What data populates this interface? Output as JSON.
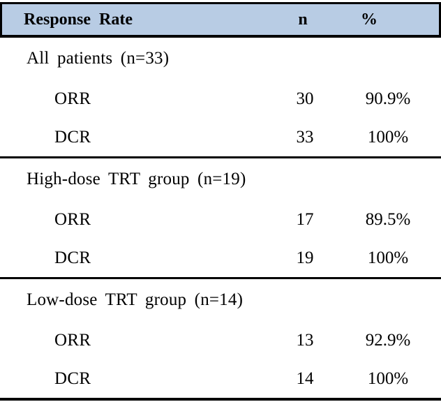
{
  "colors": {
    "header_bg": "#b8cce4",
    "border": "#000000",
    "text": "#000000"
  },
  "table": {
    "header": {
      "label": "Response Rate",
      "n": "n",
      "pct": "%"
    },
    "sections": [
      {
        "title": "All patients (n=33)",
        "rows": [
          {
            "label": "ORR",
            "n": "30",
            "pct": "90.9%"
          },
          {
            "label": "DCR",
            "n": "33",
            "pct": "100%"
          }
        ]
      },
      {
        "title": "High-dose TRT group (n=19)",
        "rows": [
          {
            "label": "ORR",
            "n": "17",
            "pct": "89.5%"
          },
          {
            "label": "DCR",
            "n": "19",
            "pct": "100%"
          }
        ]
      },
      {
        "title": "Low-dose TRT group (n=14)",
        "rows": [
          {
            "label": "ORR",
            "n": "13",
            "pct": "92.9%"
          },
          {
            "label": "DCR",
            "n": "14",
            "pct": "100%"
          }
        ]
      }
    ]
  },
  "chart_data": {
    "type": "table",
    "title": "Response Rate",
    "columns": [
      "Response Rate",
      "n",
      "%"
    ],
    "rows": [
      [
        "All patients (n=33)",
        "",
        ""
      ],
      [
        "ORR",
        "30",
        "90.9%"
      ],
      [
        "DCR",
        "33",
        "100%"
      ],
      [
        "High-dose TRT group (n=19)",
        "",
        ""
      ],
      [
        "ORR",
        "17",
        "89.5%"
      ],
      [
        "DCR",
        "19",
        "100%"
      ],
      [
        "Low-dose TRT group (n=14)",
        "",
        ""
      ],
      [
        "ORR",
        "13",
        "92.9%"
      ],
      [
        "DCR",
        "14",
        "100%"
      ]
    ]
  }
}
